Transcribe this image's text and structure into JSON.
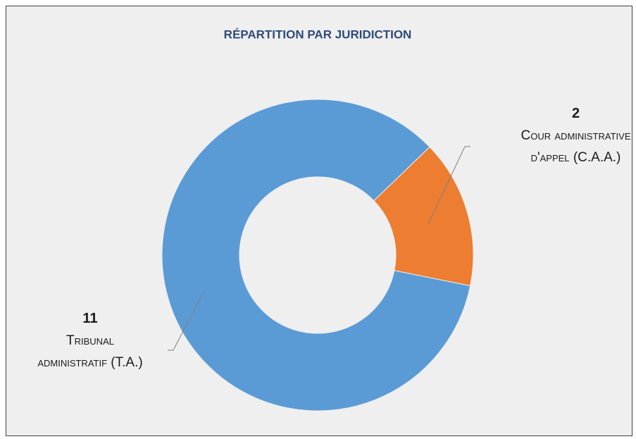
{
  "chart_data": {
    "type": "donut",
    "title": "Répartition par juridiction",
    "categories": [
      "Cour administrative d'appel (C.A.A.)",
      "Tribunal administratif (T.A.)"
    ],
    "values": [
      2,
      11
    ],
    "colors": [
      "#ed7d31",
      "#5b9bd5"
    ],
    "start_angle": 46
  }
}
